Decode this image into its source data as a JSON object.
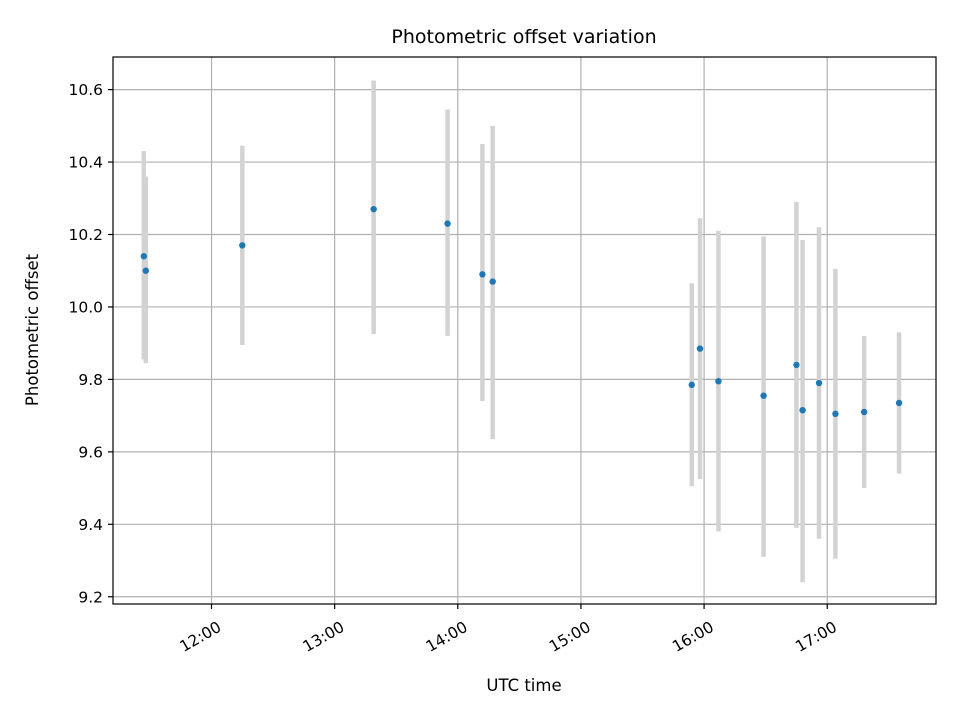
{
  "chart_data": {
    "type": "scatter",
    "title": "Photometric offset variation",
    "xlabel": "UTC time",
    "ylabel": "Photometric offset",
    "x_axis_type": "time",
    "xlim": [
      "11:12",
      "17:53"
    ],
    "ylim": [
      9.18,
      10.69
    ],
    "x_ticks": [
      "12:00",
      "13:00",
      "14:00",
      "15:00",
      "16:00",
      "17:00"
    ],
    "y_ticks": [
      9.2,
      9.4,
      9.6,
      9.8,
      10.0,
      10.2,
      10.4,
      10.6
    ],
    "y_tick_labels": [
      "9.2",
      "9.4",
      "9.6",
      "9.8",
      "10.0",
      "10.2",
      "10.4",
      "10.6"
    ],
    "grid": true,
    "point_color": "#1f77b4",
    "errorbar_color": "#d3d3d3",
    "points": [
      {
        "x": "11:27",
        "y": 10.14,
        "yerr_low": 9.855,
        "yerr_high": 10.43
      },
      {
        "x": "11:28",
        "y": 10.1,
        "yerr_low": 9.845,
        "yerr_high": 10.36
      },
      {
        "x": "12:15",
        "y": 10.17,
        "yerr_low": 9.895,
        "yerr_high": 10.445
      },
      {
        "x": "13:19",
        "y": 10.27,
        "yerr_low": 9.925,
        "yerr_high": 10.625
      },
      {
        "x": "13:55",
        "y": 10.23,
        "yerr_low": 9.92,
        "yerr_high": 10.545
      },
      {
        "x": "14:12",
        "y": 10.09,
        "yerr_low": 9.74,
        "yerr_high": 10.45
      },
      {
        "x": "14:17",
        "y": 10.07,
        "yerr_low": 9.635,
        "yerr_high": 10.5
      },
      {
        "x": "15:54",
        "y": 9.785,
        "yerr_low": 9.505,
        "yerr_high": 10.065
      },
      {
        "x": "15:58",
        "y": 9.885,
        "yerr_low": 9.525,
        "yerr_high": 10.245
      },
      {
        "x": "16:07",
        "y": 9.795,
        "yerr_low": 9.38,
        "yerr_high": 10.21
      },
      {
        "x": "16:29",
        "y": 9.755,
        "yerr_low": 9.31,
        "yerr_high": 10.195
      },
      {
        "x": "16:45",
        "y": 9.84,
        "yerr_low": 9.39,
        "yerr_high": 10.29
      },
      {
        "x": "16:48",
        "y": 9.715,
        "yerr_low": 9.24,
        "yerr_high": 10.185
      },
      {
        "x": "16:56",
        "y": 9.79,
        "yerr_low": 9.36,
        "yerr_high": 10.22
      },
      {
        "x": "17:04",
        "y": 9.705,
        "yerr_low": 9.305,
        "yerr_high": 10.105
      },
      {
        "x": "17:18",
        "y": 9.71,
        "yerr_low": 9.5,
        "yerr_high": 9.92
      },
      {
        "x": "17:35",
        "y": 9.735,
        "yerr_low": 9.54,
        "yerr_high": 9.93
      }
    ]
  }
}
